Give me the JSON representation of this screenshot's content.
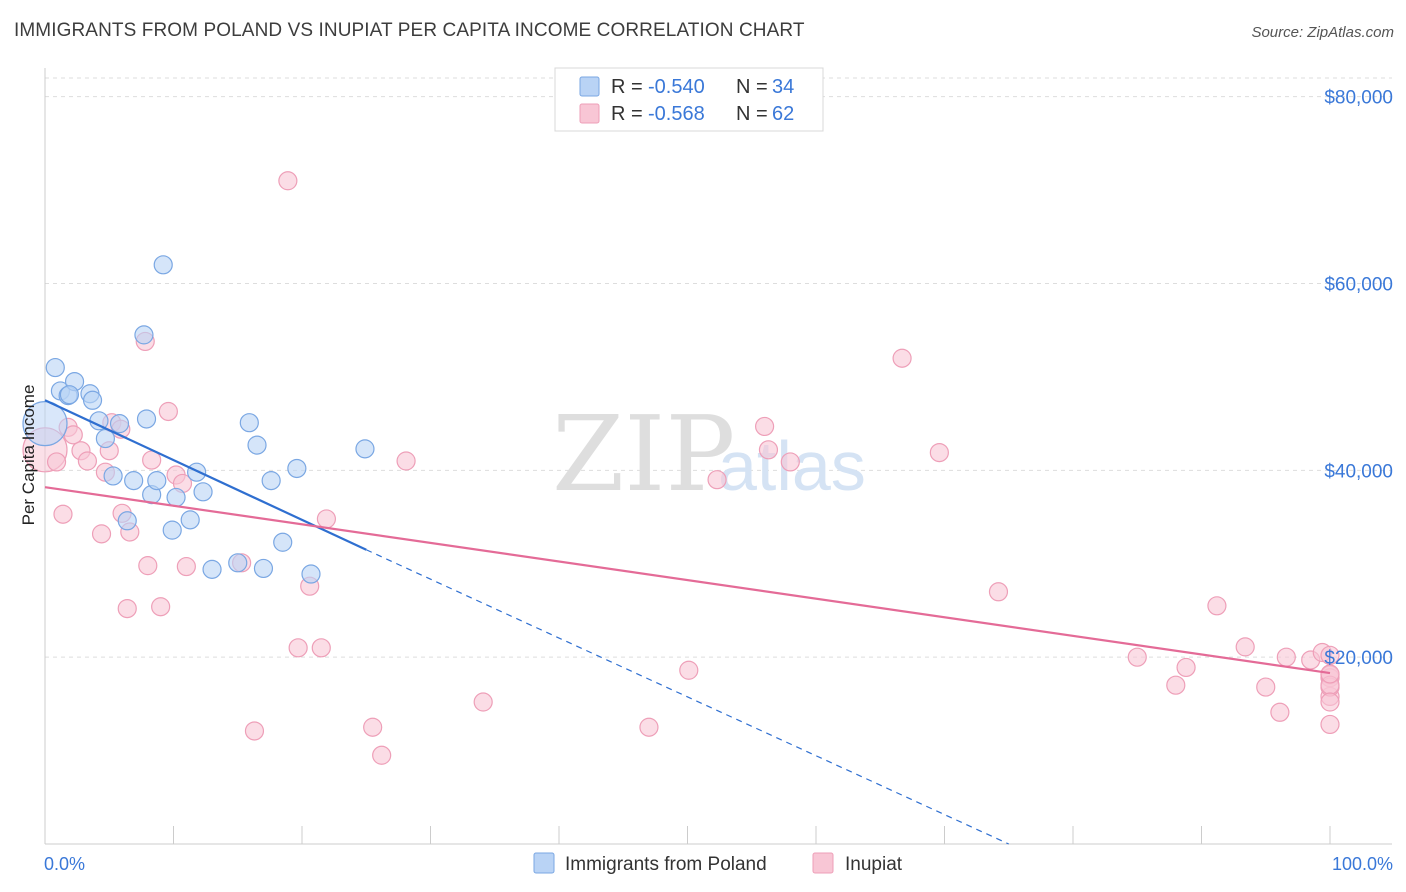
{
  "title": "IMMIGRANTS FROM POLAND VS INUPIAT PER CAPITA INCOME CORRELATION CHART",
  "source": "Source: ZipAtlas.com",
  "watermark": {
    "zip": "ZIP",
    "atlas": "atlas"
  },
  "colors": {
    "blue_fill": "#b9d3f5",
    "blue_stroke": "#7aa7e3",
    "blue_line": "#2f6fd0",
    "pink_fill": "#f8c6d5",
    "pink_stroke": "#ee9fb8",
    "pink_line": "#e46b97",
    "accent_text": "#3a78d8",
    "grid": "#dddddd"
  },
  "legend": {
    "rows": [
      {
        "r_label": "R =",
        "r_value": "-0.540",
        "n_label": "N =",
        "n_value": "34"
      },
      {
        "r_label": "R =",
        "r_value": "-0.568",
        "n_label": "N =",
        "n_value": "62"
      }
    ]
  },
  "chart_data": {
    "type": "scatter",
    "title": "IMMIGRANTS FROM POLAND VS INUPIAT PER CAPITA INCOME CORRELATION CHART",
    "xlabel": "",
    "ylabel": "Per Capita Income",
    "xlim": [
      0,
      100
    ],
    "ylim": [
      0,
      82000
    ],
    "x_tick_labels": [
      "0.0%",
      "100.0%"
    ],
    "y_ticks": [
      20000,
      40000,
      60000,
      80000
    ],
    "y_tick_labels": [
      "$20,000",
      "$40,000",
      "$60,000",
      "$80,000"
    ],
    "grid": true,
    "legend_position": "bottom-center",
    "series": [
      {
        "name": "Immigrants from Poland",
        "R": -0.54,
        "N": 34,
        "trend": {
          "x0": 0,
          "y0": 47500,
          "x1": 25,
          "y1": 31500,
          "dashed_to_x": 75,
          "dashed_to_y": 0
        },
        "points": [
          {
            "x": 0.0,
            "y": 45000,
            "big": true
          },
          {
            "x": 0.8,
            "y": 51000
          },
          {
            "x": 1.2,
            "y": 48500
          },
          {
            "x": 1.8,
            "y": 48000
          },
          {
            "x": 2.3,
            "y": 49500
          },
          {
            "x": 3.5,
            "y": 48200
          },
          {
            "x": 3.7,
            "y": 47500
          },
          {
            "x": 4.2,
            "y": 45300
          },
          {
            "x": 4.7,
            "y": 43400
          },
          {
            "x": 5.3,
            "y": 39400
          },
          {
            "x": 5.8,
            "y": 45000
          },
          {
            "x": 6.4,
            "y": 34600
          },
          {
            "x": 6.9,
            "y": 38900
          },
          {
            "x": 7.7,
            "y": 54500
          },
          {
            "x": 7.9,
            "y": 45500
          },
          {
            "x": 8.3,
            "y": 37400
          },
          {
            "x": 8.7,
            "y": 38900
          },
          {
            "x": 9.2,
            "y": 62000
          },
          {
            "x": 9.9,
            "y": 33600
          },
          {
            "x": 10.2,
            "y": 37100
          },
          {
            "x": 11.3,
            "y": 34700
          },
          {
            "x": 11.8,
            "y": 39800
          },
          {
            "x": 12.3,
            "y": 37700
          },
          {
            "x": 13.0,
            "y": 29400
          },
          {
            "x": 15.0,
            "y": 30100
          },
          {
            "x": 15.9,
            "y": 45100
          },
          {
            "x": 16.5,
            "y": 42700
          },
          {
            "x": 17.0,
            "y": 29500
          },
          {
            "x": 17.6,
            "y": 38900
          },
          {
            "x": 18.5,
            "y": 32300
          },
          {
            "x": 19.6,
            "y": 40200
          },
          {
            "x": 20.7,
            "y": 28900
          },
          {
            "x": 24.9,
            "y": 42300
          },
          {
            "x": 1.9,
            "y": 48100
          }
        ]
      },
      {
        "name": "Inupiat",
        "R": -0.568,
        "N": 62,
        "trend": {
          "x0": 0,
          "y0": 38200,
          "x1": 100,
          "y1": 18300
        },
        "points": [
          {
            "x": 0.0,
            "y": 42200,
            "big": true
          },
          {
            "x": 0.9,
            "y": 40900
          },
          {
            "x": 1.4,
            "y": 35300
          },
          {
            "x": 1.8,
            "y": 44600
          },
          {
            "x": 2.2,
            "y": 43800
          },
          {
            "x": 2.8,
            "y": 42100
          },
          {
            "x": 3.3,
            "y": 41000
          },
          {
            "x": 4.4,
            "y": 33200
          },
          {
            "x": 4.7,
            "y": 39800
          },
          {
            "x": 5.0,
            "y": 42100
          },
          {
            "x": 5.2,
            "y": 45100
          },
          {
            "x": 5.9,
            "y": 44400
          },
          {
            "x": 6.0,
            "y": 35400
          },
          {
            "x": 6.4,
            "y": 25200
          },
          {
            "x": 6.6,
            "y": 33400
          },
          {
            "x": 7.8,
            "y": 53800
          },
          {
            "x": 8.0,
            "y": 29800
          },
          {
            "x": 8.3,
            "y": 41100
          },
          {
            "x": 9.0,
            "y": 25400
          },
          {
            "x": 9.6,
            "y": 46300
          },
          {
            "x": 10.2,
            "y": 39500
          },
          {
            "x": 10.7,
            "y": 38600
          },
          {
            "x": 11.0,
            "y": 29700
          },
          {
            "x": 15.3,
            "y": 30100
          },
          {
            "x": 16.3,
            "y": 12100
          },
          {
            "x": 18.9,
            "y": 71000
          },
          {
            "x": 19.7,
            "y": 21000
          },
          {
            "x": 20.6,
            "y": 27600
          },
          {
            "x": 21.5,
            "y": 21000
          },
          {
            "x": 21.9,
            "y": 34800
          },
          {
            "x": 25.5,
            "y": 12500
          },
          {
            "x": 26.2,
            "y": 9500
          },
          {
            "x": 28.1,
            "y": 41000
          },
          {
            "x": 34.1,
            "y": 15200
          },
          {
            "x": 47.0,
            "y": 12500
          },
          {
            "x": 50.1,
            "y": 18600
          },
          {
            "x": 52.3,
            "y": 39000
          },
          {
            "x": 56.0,
            "y": 44700
          },
          {
            "x": 56.3,
            "y": 42200
          },
          {
            "x": 58.0,
            "y": 40900
          },
          {
            "x": 66.7,
            "y": 52000
          },
          {
            "x": 69.6,
            "y": 41900
          },
          {
            "x": 74.2,
            "y": 27000
          },
          {
            "x": 85.0,
            "y": 20000
          },
          {
            "x": 88.8,
            "y": 18900
          },
          {
            "x": 88.0,
            "y": 17000
          },
          {
            "x": 91.2,
            "y": 25500
          },
          {
            "x": 93.4,
            "y": 21100
          },
          {
            "x": 96.1,
            "y": 14100
          },
          {
            "x": 95.0,
            "y": 16800
          },
          {
            "x": 96.6,
            "y": 20000
          },
          {
            "x": 98.5,
            "y": 19700
          },
          {
            "x": 99.4,
            "y": 20500
          },
          {
            "x": 100.0,
            "y": 17800
          },
          {
            "x": 100.0,
            "y": 18100
          },
          {
            "x": 100.0,
            "y": 15800
          },
          {
            "x": 100.0,
            "y": 16800
          },
          {
            "x": 100.0,
            "y": 17000
          },
          {
            "x": 100.0,
            "y": 12800
          },
          {
            "x": 100.0,
            "y": 15200
          },
          {
            "x": 100.0,
            "y": 20200
          },
          {
            "x": 100.0,
            "y": 18200
          }
        ]
      }
    ]
  }
}
